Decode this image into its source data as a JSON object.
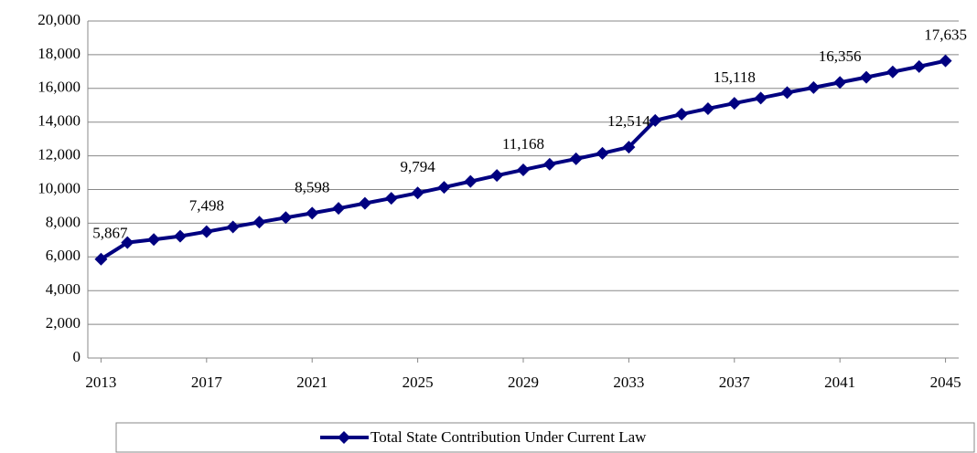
{
  "chart_data": {
    "type": "line",
    "x": [
      2013,
      2014,
      2015,
      2016,
      2017,
      2018,
      2019,
      2020,
      2021,
      2022,
      2023,
      2024,
      2025,
      2026,
      2027,
      2028,
      2029,
      2030,
      2031,
      2032,
      2033,
      2034,
      2035,
      2036,
      2037,
      2038,
      2039,
      2040,
      2041,
      2042,
      2043,
      2044,
      2045
    ],
    "series": [
      {
        "name": "Total State Contribution Under Current Law",
        "color": "#000080",
        "values": [
          5867,
          6850,
          7030,
          7230,
          7498,
          7780,
          8060,
          8330,
          8598,
          8880,
          9180,
          9480,
          9794,
          10130,
          10480,
          10830,
          11168,
          11500,
          11820,
          12150,
          12514,
          14100,
          14470,
          14800,
          15118,
          15430,
          15750,
          16050,
          16356,
          16660,
          16980,
          17300,
          17635
        ],
        "value_labels": [
          "5,867",
          null,
          null,
          null,
          "7,498",
          null,
          null,
          null,
          "8,598",
          null,
          null,
          null,
          "9,794",
          null,
          null,
          null,
          "11,168",
          null,
          null,
          null,
          "12,514",
          null,
          null,
          null,
          "15,118",
          null,
          null,
          null,
          "16,356",
          null,
          null,
          null,
          "17,635"
        ]
      }
    ],
    "xlim": [
      2012.5,
      2045.5
    ],
    "xticks": [
      2013,
      2017,
      2021,
      2025,
      2029,
      2033,
      2037,
      2041,
      2045
    ],
    "ylim": [
      0,
      20000
    ],
    "yticks": [
      0,
      {
        "value": 2000,
        "label": "2,000"
      },
      {
        "value": 4000,
        "label": "4,000"
      },
      {
        "value": 6000,
        "label": "6,000"
      },
      {
        "value": 8000,
        "label": "8,000"
      },
      {
        "value": 10000,
        "label": "10,000"
      },
      {
        "value": 12000,
        "label": "12,000"
      },
      {
        "value": 14000,
        "label": "14,000"
      },
      {
        "value": 16000,
        "label": "16,000"
      },
      {
        "value": 18000,
        "label": "18,000"
      },
      {
        "value": 20000,
        "label": "20,000"
      }
    ],
    "grid": true,
    "legend": "bottom"
  }
}
